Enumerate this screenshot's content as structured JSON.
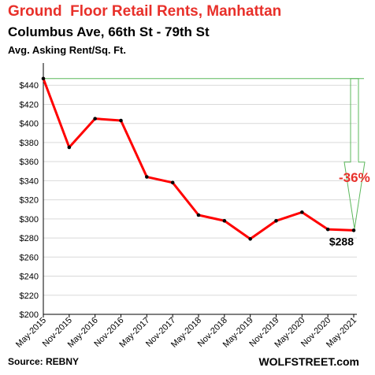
{
  "chart_data": {
    "type": "line",
    "title": "Ground  Floor Retail Rents, Manhattan",
    "subtitle": "Columbus Ave, 66th St - 79th St",
    "ylabel": "Avg. Asking Rent/Sq. Ft.",
    "source": "Source: REBNY",
    "watermark": "WOLFSTREET.com",
    "categories": [
      "May-2015",
      "Nov-2015",
      "May-2016",
      "Nov-2016",
      "May-2017",
      "Nov-2017",
      "May-2018",
      "Nov-2018",
      "May-2019",
      "Nov-2019",
      "May-2020",
      "Nov-2020",
      "May-2021"
    ],
    "values": [
      447,
      375,
      405,
      403,
      344,
      338,
      304,
      298,
      279,
      298,
      307,
      289,
      288
    ],
    "ylim": [
      200,
      460
    ],
    "yticks": [
      200,
      220,
      240,
      260,
      280,
      300,
      320,
      340,
      360,
      380,
      400,
      420,
      440
    ],
    "ytick_labels": [
      "$200",
      "$220",
      "$240",
      "$260",
      "$280",
      "$300",
      "$320",
      "$340",
      "$360",
      "$380",
      "$400",
      "$420",
      "$440"
    ],
    "grid": true,
    "line_color": "#ff0000",
    "arrow_color": "#5cb85c",
    "annotations": {
      "pct_change": "-36%",
      "last_value_label": "$288"
    }
  }
}
